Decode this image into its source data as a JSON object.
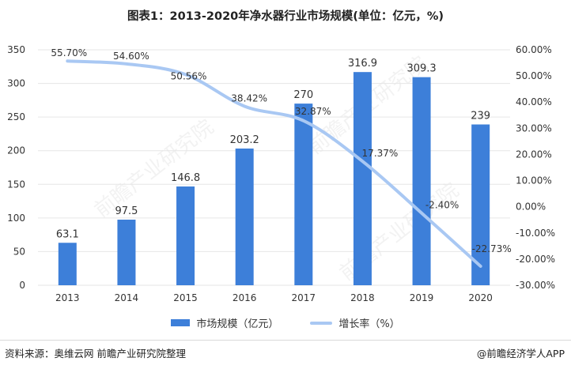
{
  "title": "图表1：2013-2020年净水器行业市场规模(单位：亿元，%)",
  "source": "资料来源：奥维云网 前瞻产业研究院整理",
  "brand": "@前瞻经济学人APP",
  "watermark": "前瞻产业研究院",
  "colors": {
    "bar": "#3d7fd9",
    "line": "#a9c8f3",
    "grid": "#e6e6e6",
    "text": "#333333"
  },
  "chart_data": {
    "type": "bar",
    "categories": [
      "2013",
      "2014",
      "2015",
      "2016",
      "2017",
      "2018",
      "2019",
      "2020"
    ],
    "series": [
      {
        "name": "市场规模（亿元）",
        "type": "bar",
        "axis": "left",
        "values": [
          63.1,
          97.5,
          146.8,
          203.2,
          270,
          316.9,
          309.3,
          239
        ],
        "labels": [
          "63.1",
          "97.5",
          "146.8",
          "203.2",
          "270",
          "316.9",
          "309.3",
          "239"
        ]
      },
      {
        "name": "增长率（%）",
        "type": "line",
        "axis": "right",
        "values": [
          55.7,
          54.6,
          50.56,
          38.42,
          32.87,
          17.37,
          -2.4,
          -22.73
        ],
        "labels": [
          "55.70%",
          "54.60%",
          "50.56%",
          "38.42%",
          "32.87%",
          "17.37%",
          "-2.40%",
          "-22.73%"
        ]
      }
    ],
    "y_left": {
      "min": 0,
      "max": 350,
      "step": 50,
      "ticks": [
        "0",
        "50",
        "100",
        "150",
        "200",
        "250",
        "300",
        "350"
      ]
    },
    "y_right": {
      "min": -30,
      "max": 60,
      "step": 10,
      "ticks": [
        "-30.00%",
        "-20.00%",
        "-10.00%",
        "0.00%",
        "10.00%",
        "20.00%",
        "30.00%",
        "40.00%",
        "50.00%",
        "60.00%"
      ]
    },
    "grid": true,
    "legend": "bottom"
  }
}
